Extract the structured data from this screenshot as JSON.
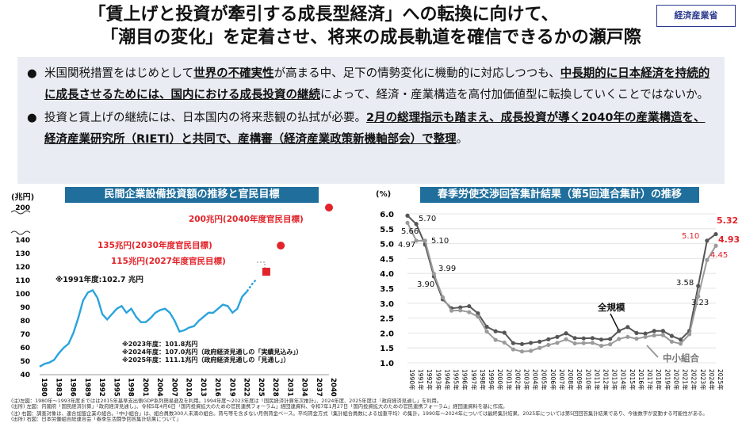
{
  "header": {
    "title_line1": "「賃上げと投資が牽引する成長型経済」への転換に向けて、",
    "title_line2": "「潮目の変化」を定着させ、将来の成長軌道を確信できるかの瀬戸際",
    "logo_text": "経済産業省"
  },
  "bullets": {
    "b1_a": "米国関税措置をはじめとして",
    "b1_b": "世界の不確実性",
    "b1_c": "が高まる中、足下の情勢変化に機動的に対応しつつも、",
    "b1_d": "中長期的に日本経済を持続的に成長させるためには、国内における成長投資の継続",
    "b1_e": "によって、経済・産業構造を高付加価値型に転換していくことではないか。",
    "b2_a": "投資と賃上げの継続には、日本国内の将来悲観の払拭が必要。",
    "b2_b": "2月の総理指示も踏まえ、成長投資が導く2040年の産業構造を、経済産業研究所（RIETI）と共同で、産構審（経済産業政策新機軸部会）で整理",
    "b2_c": "。"
  },
  "left_panel": {
    "title": "民間企業設備投資額の推移と官民目標",
    "unit": "(兆円)",
    "label_1991": "※1991年度:102.7 兆円",
    "target_2040": "200兆円(2040年度官民目標)",
    "target_2030": "135兆円(2030年度官民目標)",
    "target_2027": "115兆円(2027年度官民目標)",
    "note_2023": "※2023年度：101.8兆円",
    "note_2024": "※2024年度：107.0兆円（政府経済見通しの「実績見込み」）",
    "note_2025": "※2025年度：111.1兆円（政府経済見通しの「見通し」）"
  },
  "right_panel": {
    "title": "春季労使交渉回答集計結果（第5回連合集計）の推移",
    "unit": "(%)",
    "label_large": "全規模",
    "label_small": "中小組合"
  },
  "notes": {
    "n1": "(注)左図：1980年〜1993年度まではは2015年基準支出側GDP系列簡易遡及を利用。1994年度〜2023年度は「国民経済計算年次推計」、2024年度、2025年度は「政府経済見通し」を利用。",
    "n2": "(出所) 左図：内閣府「国民経済計算」「政府経済見通し」、令和5年4月6日「国内投資拡大のための官民連携フォーラム」経団連資料、令和7年1月27日「国内投資拡大のための官民連携フォーラム」経団連資料を基に作成。",
    "n3": "(注) 右図：調査対象は、連合加盟企業の組合。「中小組合」は、組合員数300人未満の組合。賃与等を含まない月例賃金ベース。平均賃金方式（集計組合員数による加重平均）の集計。1990年〜2024年については最終集計結果、2025年については第5回回答集計結果であり、今後数字が変動する可能性がある。",
    "n4": "(出所) 右図：日本労働組合総連合会「春季生活闘争回答集計結果について」"
  },
  "chart_data": [
    {
      "type": "line",
      "title": "民間企業設備投資額の推移と官民目標",
      "ylabel": "(兆円)",
      "ylim": [
        40,
        200
      ],
      "y_ticks": [
        40,
        50,
        60,
        70,
        80,
        90,
        100,
        110,
        120,
        130,
        140,
        200
      ],
      "x_ticks": [
        1980,
        1983,
        1986,
        1989,
        1992,
        1995,
        1998,
        2001,
        2004,
        2007,
        2010,
        2013,
        2016,
        2019,
        2022,
        2025,
        2028,
        2031,
        2034,
        2037,
        2040
      ],
      "series": [
        {
          "name": "実績",
          "x": [
            1980,
            1981,
            1982,
            1983,
            1984,
            1985,
            1986,
            1987,
            1988,
            1989,
            1990,
            1991,
            1992,
            1993,
            1994,
            1995,
            1996,
            1997,
            1998,
            1999,
            2000,
            2001,
            2002,
            2003,
            2004,
            2005,
            2006,
            2007,
            2008,
            2009,
            2010,
            2011,
            2012,
            2013,
            2014,
            2015,
            2016,
            2017,
            2018,
            2019,
            2020,
            2021,
            2022,
            2023
          ],
          "values": [
            46,
            48,
            49,
            51,
            56,
            60,
            63,
            71,
            82,
            95,
            101,
            102.7,
            97,
            85,
            81,
            85,
            89,
            91,
            86,
            89,
            83,
            79,
            79,
            82,
            86,
            88,
            89,
            86,
            80,
            72,
            73,
            75,
            76,
            80,
            83,
            86,
            86,
            89,
            92,
            91,
            86,
            89,
            98,
            101.8
          ]
        },
        {
          "name": "見込み・見通し",
          "x": [
            2023,
            2024,
            2025
          ],
          "values": [
            101.8,
            107.0,
            111.1
          ]
        }
      ],
      "targets": [
        {
          "label": "115兆円(2027年度官民目標)",
          "x": 2027,
          "value": 115
        },
        {
          "label": "135兆円(2030年度官民目標)",
          "x": 2030,
          "value": 135
        },
        {
          "label": "200兆円(2040年度官民目標)",
          "x": 2040,
          "value": 200
        }
      ]
    },
    {
      "type": "line",
      "title": "春季労使交渉回答集計結果（第5回連合集計）の推移",
      "ylabel": "(%)",
      "ylim": [
        1.0,
        6.0
      ],
      "y_ticks": [
        1.0,
        1.5,
        2.0,
        2.5,
        3.0,
        3.5,
        4.0,
        4.5,
        5.0,
        5.5,
        6.0
      ],
      "categories": [
        "1990年",
        "1991年",
        "1992年",
        "1993年",
        "1994年",
        "1995年",
        "1996年",
        "1997年",
        "1998年",
        "1999年",
        "2000年",
        "2001年",
        "2002年",
        "2003年",
        "2004年",
        "2005年",
        "2006年",
        "2007年",
        "2008年",
        "2009年",
        "2010年",
        "2011年",
        "2012年",
        "2013年",
        "2014年",
        "2015年",
        "2016年",
        "2017年",
        "2018年",
        "2019年",
        "2020年",
        "2021年",
        "2022年",
        "2023年",
        "2024年",
        "2025年"
      ],
      "series": [
        {
          "name": "全規模",
          "values": [
            5.94,
            5.66,
            4.97,
            3.9,
            3.13,
            2.83,
            2.86,
            2.9,
            2.66,
            2.21,
            2.06,
            2.01,
            1.66,
            1.63,
            1.67,
            1.71,
            1.79,
            1.87,
            1.99,
            1.83,
            1.82,
            1.83,
            1.78,
            1.8,
            2.07,
            2.2,
            2.0,
            1.98,
            2.07,
            2.07,
            1.9,
            1.78,
            2.07,
            3.58,
            5.1,
            5.32
          ]
        },
        {
          "name": "中小組合",
          "values": [
            5.7,
            5.1,
            5.1,
            3.99,
            3.2,
            2.75,
            2.76,
            2.7,
            2.55,
            2.05,
            1.77,
            1.68,
            1.45,
            1.38,
            1.4,
            1.5,
            1.6,
            1.67,
            1.79,
            1.65,
            1.66,
            1.67,
            1.57,
            1.62,
            1.8,
            1.87,
            1.81,
            1.87,
            1.92,
            1.93,
            1.71,
            1.64,
            1.96,
            3.23,
            4.45,
            4.93
          ]
        }
      ],
      "value_labels": [
        "5.70",
        "5.66",
        "4.97",
        "5.10",
        "3.90",
        "3.99",
        "3.58",
        "3.23",
        "5.10",
        "5.32",
        "4.93",
        "4.45"
      ],
      "annotations": [
        "全規模",
        "中小組合"
      ]
    }
  ]
}
